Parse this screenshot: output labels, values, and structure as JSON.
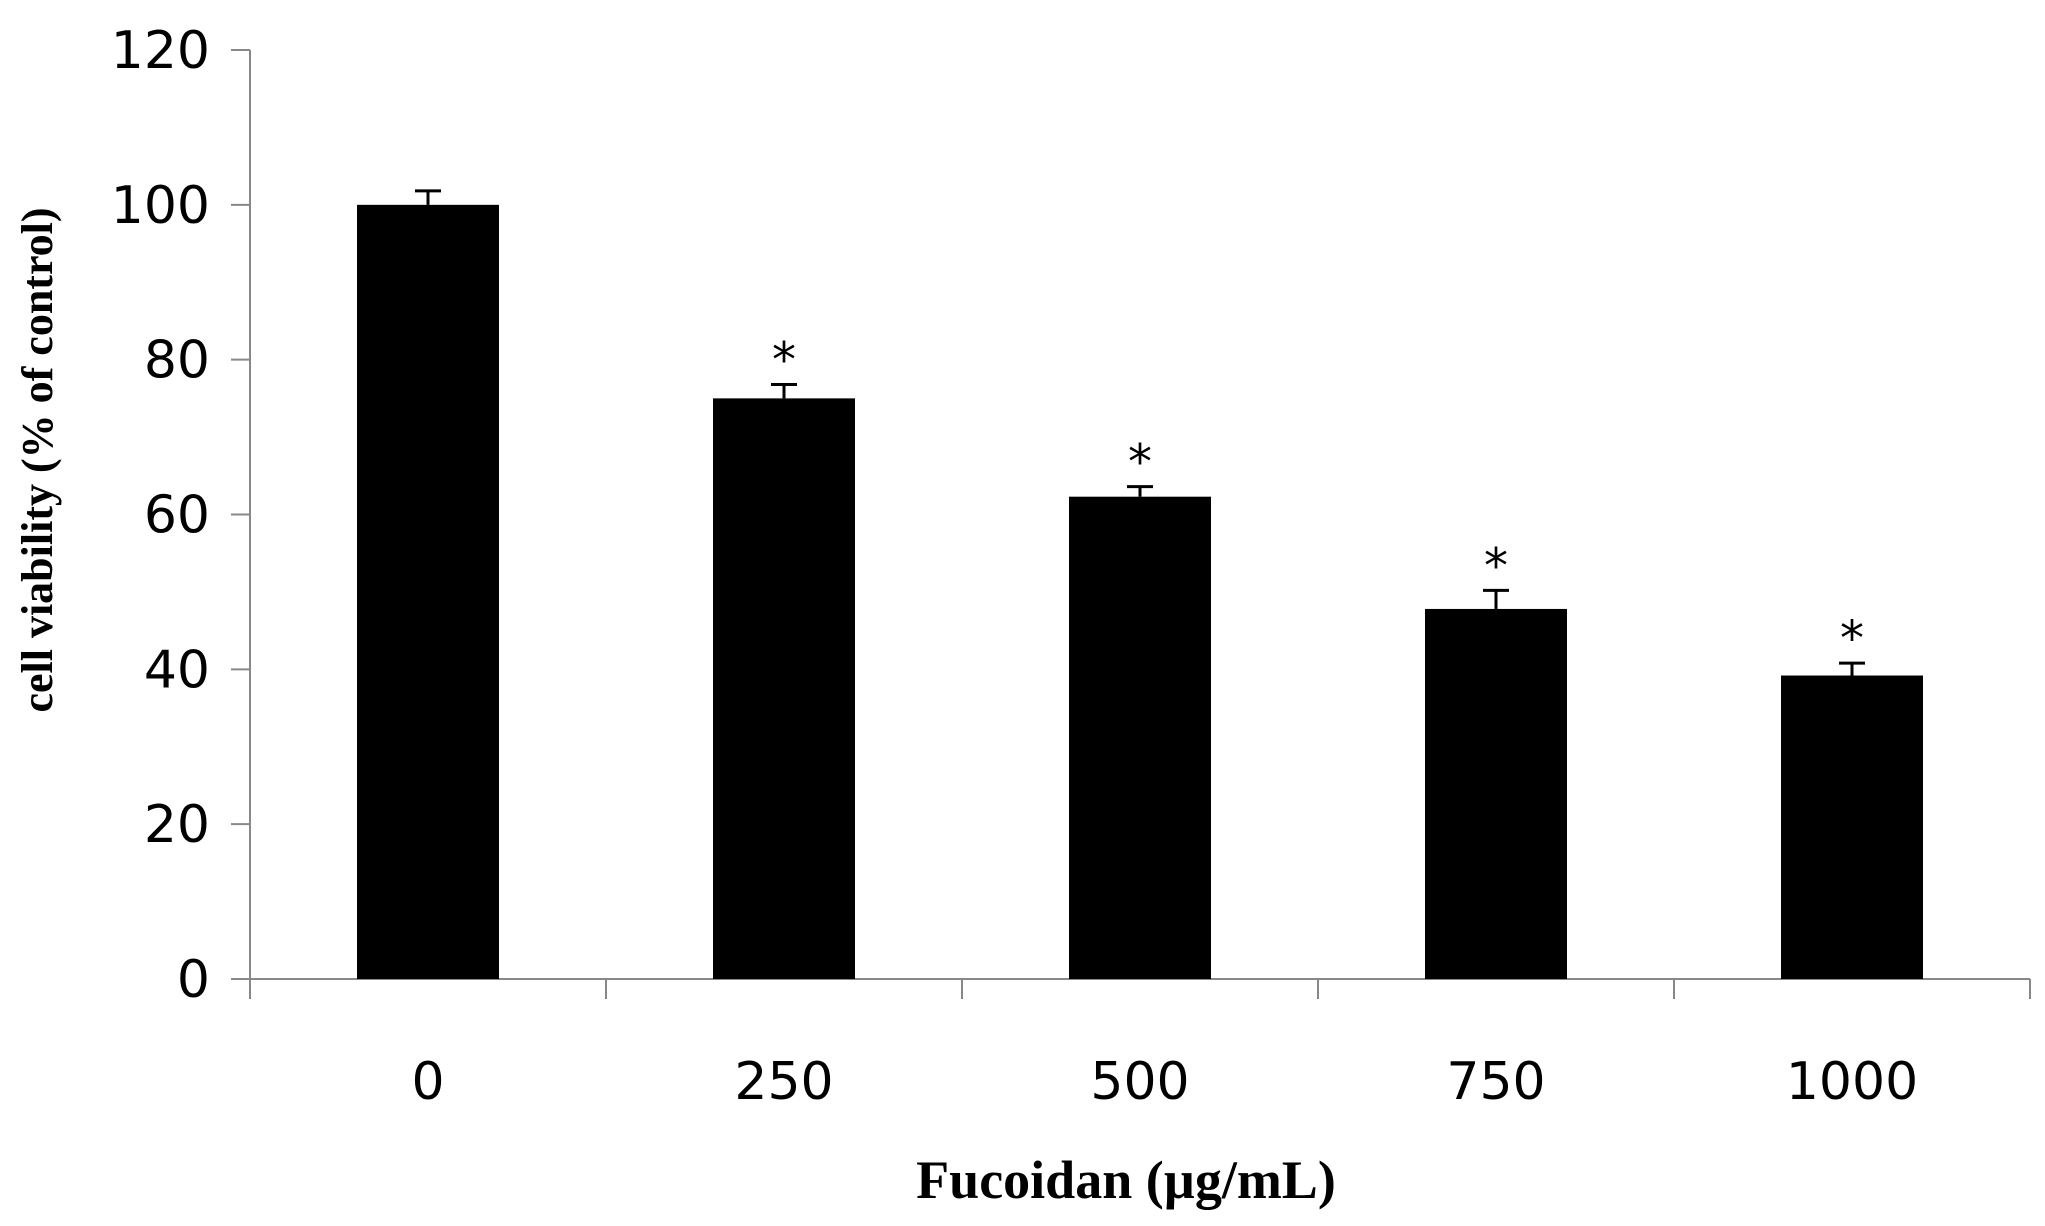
{
  "chart_data": {
    "type": "bar",
    "title": "",
    "xlabel": "Fucoidan (µg/mL)",
    "ylabel": "cell viability (% of control)",
    "categories": [
      "0",
      "250",
      "500",
      "750",
      "1000"
    ],
    "values": [
      100,
      75,
      62.3,
      47.8,
      39.2
    ],
    "errors": [
      1.8,
      1.8,
      1.3,
      2.4,
      1.6
    ],
    "significance": [
      "",
      "*",
      "*",
      "*",
      "*"
    ],
    "ylim": [
      0,
      120
    ],
    "yticks": [
      0,
      20,
      40,
      60,
      80,
      100,
      120
    ],
    "yticklabels": [
      "0",
      "20",
      "40",
      "60",
      "80",
      "100",
      "120"
    ],
    "grid": false,
    "legend": "none",
    "bar_color": "#000000"
  }
}
